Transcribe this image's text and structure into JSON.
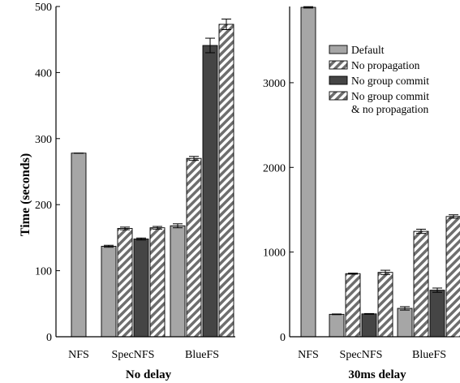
{
  "figure": {
    "ylabel": "Time (seconds)"
  },
  "colors": {
    "default": "#a6a6a6",
    "no_group_commit": "#454545",
    "stripe_dark": "#6e6e6e",
    "stripe_light": "#ffffff",
    "axis": "#000000"
  },
  "legend": {
    "items": [
      {
        "key": "default",
        "label": "Default",
        "lines": [
          "Default"
        ],
        "fill": "solid-light"
      },
      {
        "key": "no_propagation",
        "label": "No propagation",
        "lines": [
          "No propagation"
        ],
        "fill": "hatched"
      },
      {
        "key": "no_group_commit",
        "label": "No group commit",
        "lines": [
          "No group commit"
        ],
        "fill": "solid-dark"
      },
      {
        "key": "no_group_commit_no_propagation",
        "label": "No group commit & no propagation",
        "lines": [
          "No group commit",
          "& no propagation"
        ],
        "fill": "hatched"
      }
    ]
  },
  "chart_data": [
    {
      "type": "bar",
      "title": "No delay",
      "xlabel": "No delay",
      "ylabel": "Time (seconds)",
      "ylim": [
        0,
        500
      ],
      "yticks": [
        0,
        100,
        200,
        300,
        400,
        500
      ],
      "categories": [
        "NFS",
        "SpecNFS",
        "BlueFS"
      ],
      "series": [
        {
          "name": "Default",
          "values": [
            278,
            137,
            168
          ],
          "errors": [
            0,
            1.5,
            3
          ]
        },
        {
          "name": "No propagation",
          "values": [
            null,
            164,
            270
          ],
          "errors": [
            0,
            2,
            3
          ]
        },
        {
          "name": "No group commit",
          "values": [
            null,
            148,
            441
          ],
          "errors": [
            0,
            1.5,
            11
          ]
        },
        {
          "name": "No group commit & no propagation",
          "values": [
            null,
            165,
            473
          ],
          "errors": [
            0,
            2,
            8
          ]
        }
      ],
      "grid": false
    },
    {
      "type": "bar",
      "title": "30ms delay",
      "xlabel": "30ms delay",
      "ylabel": "",
      "ylim": [
        0,
        3900
      ],
      "yticks": [
        0,
        1000,
        2000,
        3000
      ],
      "categories": [
        "NFS",
        "SpecNFS",
        "BlueFS"
      ],
      "series": [
        {
          "name": "Default",
          "values": [
            3890,
            265,
            335
          ],
          "errors": [
            8,
            4,
            20
          ]
        },
        {
          "name": "No propagation",
          "values": [
            null,
            745,
            1245
          ],
          "errors": [
            0,
            6,
            25
          ]
        },
        {
          "name": "No group commit",
          "values": [
            null,
            270,
            550
          ],
          "errors": [
            0,
            4,
            25
          ]
        },
        {
          "name": "No group commit & no propagation",
          "values": [
            null,
            760,
            1420
          ],
          "errors": [
            0,
            25,
            20
          ]
        }
      ],
      "legend": "top-right",
      "grid": false
    }
  ]
}
